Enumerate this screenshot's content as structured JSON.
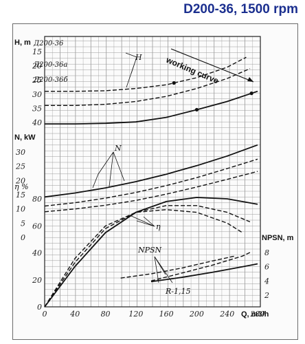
{
  "title": "D200-36, 1500 rpm",
  "chart_data": {
    "type": "line",
    "x_label": "Q, m3/h",
    "x_ticks": [
      "0",
      "40",
      "80",
      "120",
      "160",
      "200",
      "240",
      "280"
    ],
    "panels": {
      "head": {
        "axis_label": "H, m",
        "ticks": [
          "40",
          "35",
          "30",
          "25",
          "20",
          "15"
        ],
        "ylim": [
          15,
          41
        ],
        "series": [
          {
            "name": "Д200-36",
            "style": "solid",
            "x": [
              0,
              40,
              80,
              120,
              160,
              200,
              240,
              280
            ],
            "y": [
              40.5,
              40.5,
              40.3,
              39.8,
              38.2,
              35.5,
              32.6,
              29.0
            ]
          },
          {
            "name": "Д200-36а",
            "style": "dashed",
            "x": [
              0,
              40,
              80,
              120,
              160,
              200,
              240,
              270
            ],
            "y": [
              34.0,
              34.0,
              33.6,
              32.6,
              30.8,
              28.0,
              24.5,
              21.0
            ]
          },
          {
            "name": "Д200-36б",
            "style": "dashed",
            "x": [
              0,
              40,
              80,
              120,
              160,
              200,
              240,
              265
            ],
            "y": [
              29.0,
              29.0,
              28.8,
              28.0,
              26.7,
              24.2,
              20.5,
              17.0
            ]
          }
        ],
        "annotations": [
          "H",
          "working curve"
        ]
      },
      "power": {
        "axis_label": "N, kW",
        "ticks": [
          "30",
          "25",
          "20",
          "15",
          "10",
          "5",
          "0"
        ],
        "ylim": [
          0,
          31
        ],
        "series": [
          {
            "name": "Д200-36",
            "style": "solid",
            "x": [
              0,
              40,
              80,
              120,
              160,
              200,
              240,
              280
            ],
            "y": [
              14.2,
              15.6,
              17.4,
              19.6,
              22.2,
              25.2,
              28.6,
              32.5
            ]
          },
          {
            "name": "Д200-36а",
            "style": "dashed",
            "x": [
              0,
              40,
              80,
              120,
              160,
              200,
              240,
              280
            ],
            "y": [
              11.0,
              12.2,
              13.8,
              15.8,
              18.2,
              21.0,
              24.2,
              27.5
            ]
          },
          {
            "name": "Д200-36б",
            "style": "dashed",
            "x": [
              0,
              40,
              80,
              120,
              160,
              200,
              240,
              280
            ],
            "y": [
              9.0,
              10.0,
              11.3,
              13.0,
              15.2,
              17.7,
              20.4,
              23.2
            ]
          }
        ],
        "annotations": [
          "N"
        ]
      },
      "efficiency": {
        "axis_label": "η %",
        "ticks": [
          "80",
          "60",
          "40",
          "20",
          "0"
        ],
        "ylim": [
          0,
          87
        ],
        "series": [
          {
            "name": "Д200-36",
            "style": "solid",
            "x": [
              0,
              40,
              80,
              120,
              160,
              200,
              240,
              280
            ],
            "y": [
              0,
              30,
              55,
              70,
              78,
              81,
              80,
              76
            ]
          },
          {
            "name": "Д200-36а",
            "style": "dashed",
            "x": [
              0,
              40,
              80,
              120,
              160,
              200,
              240,
              270
            ],
            "y": [
              0,
              33,
              58,
              70,
              75,
              75,
              70,
              63
            ]
          },
          {
            "name": "Д200-36б",
            "style": "dashed",
            "x": [
              0,
              40,
              80,
              120,
              160,
              200,
              240,
              260
            ],
            "y": [
              0,
              36,
              60,
              70,
              72,
              70,
              62,
              55
            ]
          }
        ],
        "annotations": [
          "η"
        ]
      },
      "npsh": {
        "axis_label": "NPSN, m",
        "ticks": [
          "8",
          "6",
          "4",
          "2"
        ],
        "ylim": [
          0,
          9
        ],
        "series": [
          {
            "name": "Д200-36",
            "style": "solid",
            "x": [
              140,
              180,
              220,
              260,
              280
            ],
            "y": [
              3.9,
              4.5,
              5.2,
              6.0,
              6.4
            ]
          },
          {
            "name": "Д200-36а",
            "style": "dashed",
            "x": [
              140,
              180,
              220,
              260,
              270
            ],
            "y": [
              4.0,
              5.1,
              6.2,
              7.5,
              8.0
            ]
          },
          {
            "name": "Д200-36б",
            "style": "dashed",
            "x": [
              100,
              140,
              180,
              220,
              250
            ],
            "y": [
              4.4,
              5.0,
              5.8,
              6.8,
              7.5
            ]
          }
        ],
        "annotations": [
          "NPSN",
          "R-1,15"
        ]
      }
    }
  }
}
